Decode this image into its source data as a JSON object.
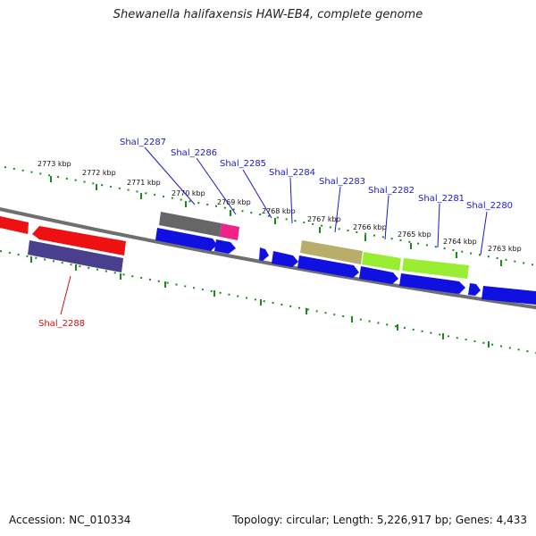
{
  "title": "Shewanella halifaxensis HAW-EB4, complete genome",
  "footer": {
    "accession": "Accession: NC_010334",
    "summary": "Topology: circular; Length: 5,226,917 bp; Genes: 4,433"
  },
  "scale_labels": [
    "2773 kbp",
    "2772 kbp",
    "2771 kbp",
    "2770 kbp",
    "2769 kbp",
    "2768 kbp",
    "2767 kbp",
    "2766 kbp",
    "2765 kbp",
    "2764 kbp",
    "2763 kbp"
  ],
  "gene_labels": [
    {
      "name": "Shal_2287",
      "color": "#1a1acc"
    },
    {
      "name": "Shal_2286",
      "color": "#1a1acc"
    },
    {
      "name": "Shal_2285",
      "color": "#1a1acc"
    },
    {
      "name": "Shal_2284",
      "color": "#1a1acc"
    },
    {
      "name": "Shal_2283",
      "color": "#1a1acc"
    },
    {
      "name": "Shal_2282",
      "color": "#1a1acc"
    },
    {
      "name": "Shal_2281",
      "color": "#1a1acc"
    },
    {
      "name": "Shal_2280",
      "color": "#1a1acc"
    },
    {
      "name": "Shal_2288",
      "color": "#d01010"
    }
  ],
  "colors": {
    "backbone": "#777777",
    "tick": "#1a8a1a",
    "cds_blue": "#1010e0",
    "red": "#ee1111",
    "purple": "#4a3f8c",
    "gray_feature": "#666666",
    "magenta": "#ee2288",
    "khaki": "#b8ae6a",
    "lime": "#99ee33"
  }
}
